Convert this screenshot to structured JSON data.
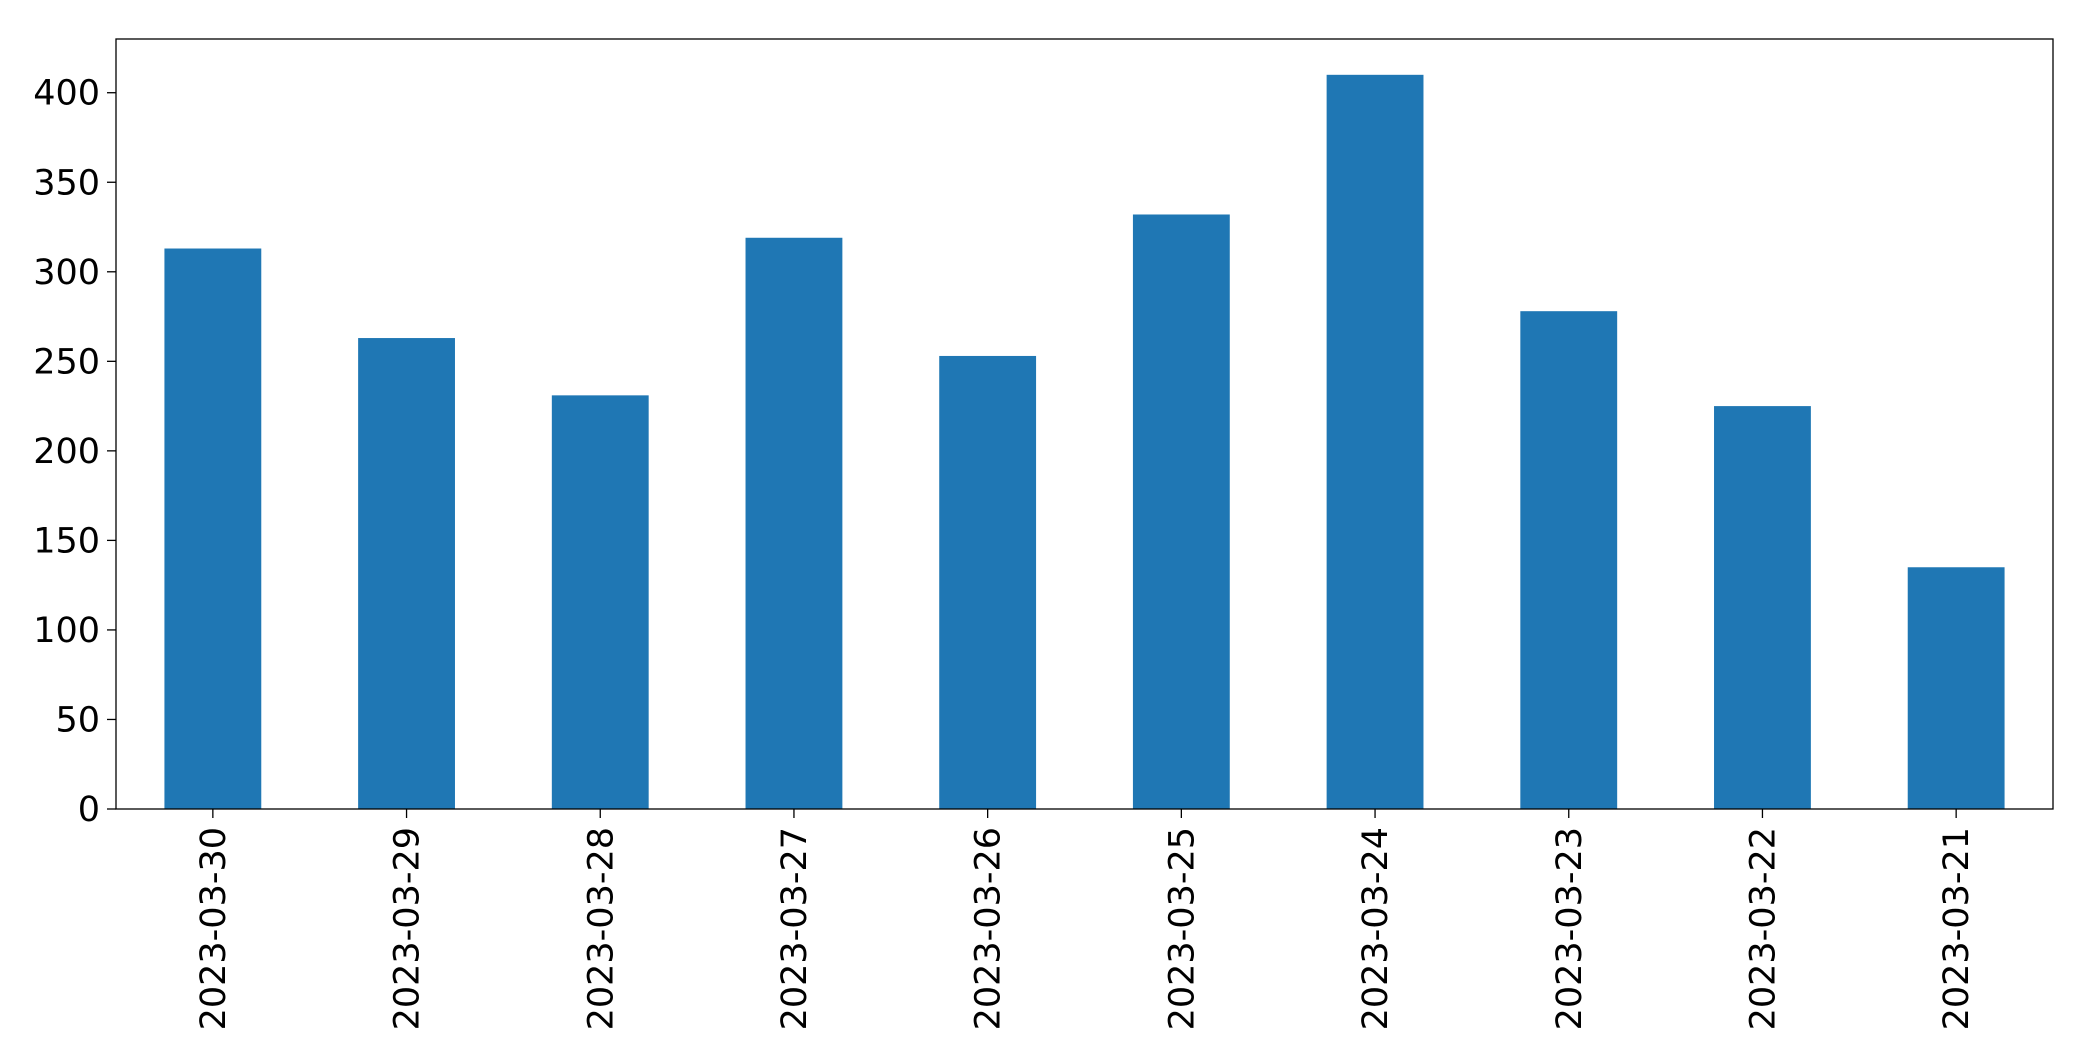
{
  "chart_data": {
    "type": "bar",
    "categories": [
      "2023-03-30",
      "2023-03-29",
      "2023-03-28",
      "2023-03-27",
      "2023-03-26",
      "2023-03-25",
      "2023-03-24",
      "2023-03-23",
      "2023-03-22",
      "2023-03-21"
    ],
    "values": [
      313,
      263,
      231,
      319,
      253,
      332,
      410,
      278,
      225,
      135
    ],
    "color": "#1f77b4",
    "ylim": [
      0,
      430
    ],
    "yticks": [
      0,
      50,
      100,
      150,
      200,
      250,
      300,
      350,
      400
    ],
    "grid": false
  }
}
